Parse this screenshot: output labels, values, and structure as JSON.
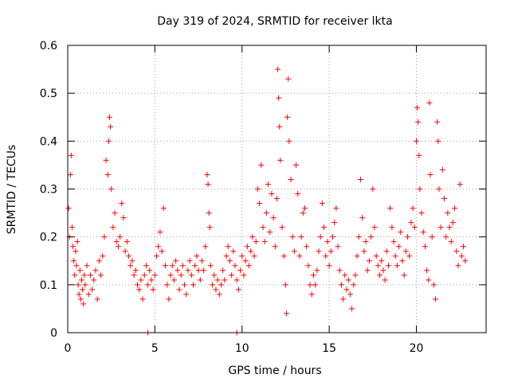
{
  "chart_data": {
    "type": "scatter",
    "title": "Day 319 of 2024, SRMTID for receiver lkta",
    "xlabel": "GPS time / hours",
    "ylabel": "SRMTID / TECUs",
    "xlim": [
      0,
      24
    ],
    "ylim": [
      0,
      0.6
    ],
    "xticks": [
      0,
      5,
      10,
      15,
      20
    ],
    "yticks": [
      0,
      0.1,
      0.2,
      0.3,
      0.4,
      0.5,
      0.6
    ],
    "xtick_labels": [
      "0",
      "5",
      "10",
      "15",
      "20"
    ],
    "ytick_labels": [
      "0",
      "0.1",
      "0.2",
      "0.3",
      "0.4",
      "0.5",
      "0.6"
    ],
    "grid": true,
    "marker": "+",
    "color": "#ff0000",
    "series": [
      {
        "name": "SRMTID",
        "points": [
          [
            0.05,
            0.26
          ],
          [
            0.1,
            0.2
          ],
          [
            0.15,
            0.33
          ],
          [
            0.2,
            0.37
          ],
          [
            0.25,
            0.22
          ],
          [
            0.3,
            0.18
          ],
          [
            0.35,
            0.15
          ],
          [
            0.4,
            0.12
          ],
          [
            0.45,
            0.17
          ],
          [
            0.5,
            0.14
          ],
          [
            0.55,
            0.19
          ],
          [
            0.6,
            0.1
          ],
          [
            0.65,
            0.08
          ],
          [
            0.7,
            0.13
          ],
          [
            0.75,
            0.07
          ],
          [
            0.8,
            0.11
          ],
          [
            0.85,
            0.09
          ],
          [
            0.9,
            0.06
          ],
          [
            0.95,
            0.12
          ],
          [
            1.0,
            0.1
          ],
          [
            1.1,
            0.14
          ],
          [
            1.2,
            0.08
          ],
          [
            1.3,
            0.12
          ],
          [
            1.4,
            0.09
          ],
          [
            1.5,
            0.11
          ],
          [
            1.6,
            0.13
          ],
          [
            1.7,
            0.07
          ],
          [
            1.8,
            0.15
          ],
          [
            1.9,
            0.12
          ],
          [
            2.0,
            0.16
          ],
          [
            2.1,
            0.2
          ],
          [
            2.2,
            0.36
          ],
          [
            2.3,
            0.33
          ],
          [
            2.35,
            0.4
          ],
          [
            2.4,
            0.45
          ],
          [
            2.45,
            0.43
          ],
          [
            2.5,
            0.3
          ],
          [
            2.6,
            0.22
          ],
          [
            2.7,
            0.25
          ],
          [
            2.8,
            0.19
          ],
          [
            2.9,
            0.18
          ],
          [
            3.0,
            0.2
          ],
          [
            3.1,
            0.27
          ],
          [
            3.2,
            0.24
          ],
          [
            3.3,
            0.17
          ],
          [
            3.4,
            0.19
          ],
          [
            3.5,
            0.16
          ],
          [
            3.6,
            0.14
          ],
          [
            3.7,
            0.15
          ],
          [
            3.8,
            0.12
          ],
          [
            3.9,
            0.13
          ],
          [
            4.0,
            0.1
          ],
          [
            4.1,
            0.09
          ],
          [
            4.2,
            0.11
          ],
          [
            4.3,
            0.07
          ],
          [
            4.4,
            0.12
          ],
          [
            4.5,
            0.14
          ],
          [
            4.6,
            0.1
          ],
          [
            4.7,
            0.13
          ],
          [
            4.8,
            0.11
          ],
          [
            4.9,
            0.09
          ],
          [
            5.0,
            0.12
          ],
          [
            5.1,
            0.16
          ],
          [
            5.2,
            0.18
          ],
          [
            5.3,
            0.21
          ],
          [
            5.4,
            0.17
          ],
          [
            5.5,
            0.26
          ],
          [
            5.6,
            0.14
          ],
          [
            5.7,
            0.1
          ],
          [
            5.8,
            0.07
          ],
          [
            5.9,
            0.12
          ],
          [
            6.0,
            0.14
          ],
          [
            6.1,
            0.11
          ],
          [
            6.2,
            0.15
          ],
          [
            6.3,
            0.13
          ],
          [
            6.4,
            0.09
          ],
          [
            6.5,
            0.12
          ],
          [
            6.6,
            0.14
          ],
          [
            6.7,
            0.1
          ],
          [
            6.8,
            0.08
          ],
          [
            6.9,
            0.13
          ],
          [
            7.0,
            0.15
          ],
          [
            7.1,
            0.12
          ],
          [
            7.2,
            0.1
          ],
          [
            7.3,
            0.14
          ],
          [
            7.4,
            0.16
          ],
          [
            7.5,
            0.13
          ],
          [
            7.6,
            0.11
          ],
          [
            7.7,
            0.15
          ],
          [
            7.8,
            0.13
          ],
          [
            7.9,
            0.18
          ],
          [
            8.0,
            0.33
          ],
          [
            8.05,
            0.31
          ],
          [
            8.1,
            0.25
          ],
          [
            8.15,
            0.22
          ],
          [
            8.2,
            0.14
          ],
          [
            8.3,
            0.1
          ],
          [
            8.4,
            0.12
          ],
          [
            8.5,
            0.09
          ],
          [
            8.6,
            0.11
          ],
          [
            8.7,
            0.08
          ],
          [
            8.8,
            0.1
          ],
          [
            8.9,
            0.13
          ],
          [
            9.0,
            0.11
          ],
          [
            9.1,
            0.16
          ],
          [
            9.2,
            0.18
          ],
          [
            9.3,
            0.15
          ],
          [
            9.4,
            0.12
          ],
          [
            9.5,
            0.17
          ],
          [
            9.6,
            0.14
          ],
          [
            9.7,
            0.11
          ],
          [
            9.8,
            0.09
          ],
          [
            9.9,
            0.13
          ],
          [
            10.0,
            0.16
          ],
          [
            10.1,
            0.12
          ],
          [
            10.2,
            0.15
          ],
          [
            10.3,
            0.18
          ],
          [
            10.4,
            0.14
          ],
          [
            10.5,
            0.17
          ],
          [
            10.6,
            0.2
          ],
          [
            10.7,
            0.16
          ],
          [
            10.8,
            0.19
          ],
          [
            10.9,
            0.3
          ],
          [
            11.0,
            0.27
          ],
          [
            11.1,
            0.35
          ],
          [
            11.2,
            0.22
          ],
          [
            11.3,
            0.19
          ],
          [
            11.4,
            0.25
          ],
          [
            11.5,
            0.31
          ],
          [
            11.6,
            0.21
          ],
          [
            11.7,
            0.29
          ],
          [
            11.8,
            0.24
          ],
          [
            11.9,
            0.18
          ],
          [
            12.0,
            0.28
          ],
          [
            12.05,
            0.55
          ],
          [
            12.1,
            0.49
          ],
          [
            12.15,
            0.43
          ],
          [
            12.2,
            0.36
          ],
          [
            12.3,
            0.22
          ],
          [
            12.4,
            0.16
          ],
          [
            12.5,
            0.1
          ],
          [
            12.55,
            0.04
          ],
          [
            12.6,
            0.45
          ],
          [
            12.65,
            0.53
          ],
          [
            12.7,
            0.4
          ],
          [
            12.8,
            0.32
          ],
          [
            12.9,
            0.2
          ],
          [
            13.0,
            0.17
          ],
          [
            13.1,
            0.35
          ],
          [
            13.2,
            0.29
          ],
          [
            13.3,
            0.16
          ],
          [
            13.4,
            0.2
          ],
          [
            13.5,
            0.25
          ],
          [
            13.6,
            0.26
          ],
          [
            13.7,
            0.18
          ],
          [
            13.8,
            0.14
          ],
          [
            13.9,
            0.1
          ],
          [
            14.0,
            0.08
          ],
          [
            14.1,
            0.12
          ],
          [
            14.2,
            0.1
          ],
          [
            14.3,
            0.13
          ],
          [
            14.4,
            0.17
          ],
          [
            14.5,
            0.2
          ],
          [
            14.6,
            0.27
          ],
          [
            14.7,
            0.22
          ],
          [
            14.8,
            0.16
          ],
          [
            14.9,
            0.19
          ],
          [
            15.0,
            0.14
          ],
          [
            15.1,
            0.17
          ],
          [
            15.2,
            0.2
          ],
          [
            15.3,
            0.23
          ],
          [
            15.4,
            0.26
          ],
          [
            15.5,
            0.18
          ],
          [
            15.6,
            0.13
          ],
          [
            15.7,
            0.1
          ],
          [
            15.8,
            0.07
          ],
          [
            15.9,
            0.12
          ],
          [
            16.0,
            0.09
          ],
          [
            16.1,
            0.11
          ],
          [
            16.2,
            0.08
          ],
          [
            16.3,
            0.05
          ],
          [
            16.4,
            0.1
          ],
          [
            16.5,
            0.12
          ],
          [
            16.6,
            0.16
          ],
          [
            16.7,
            0.2
          ],
          [
            16.8,
            0.32
          ],
          [
            16.9,
            0.24
          ],
          [
            17.0,
            0.17
          ],
          [
            17.1,
            0.19
          ],
          [
            17.2,
            0.13
          ],
          [
            17.3,
            0.15
          ],
          [
            17.4,
            0.2
          ],
          [
            17.5,
            0.3
          ],
          [
            17.6,
            0.22
          ],
          [
            17.7,
            0.16
          ],
          [
            17.8,
            0.14
          ],
          [
            17.9,
            0.12
          ],
          [
            18.0,
            0.15
          ],
          [
            18.1,
            0.13
          ],
          [
            18.2,
            0.11
          ],
          [
            18.3,
            0.17
          ],
          [
            18.4,
            0.14
          ],
          [
            18.5,
            0.26
          ],
          [
            18.6,
            0.22
          ],
          [
            18.7,
            0.19
          ],
          [
            18.8,
            0.16
          ],
          [
            18.9,
            0.14
          ],
          [
            19.0,
            0.18
          ],
          [
            19.1,
            0.21
          ],
          [
            19.2,
            0.15
          ],
          [
            19.3,
            0.12
          ],
          [
            19.4,
            0.17
          ],
          [
            19.5,
            0.2
          ],
          [
            19.6,
            0.16
          ],
          [
            19.7,
            0.23
          ],
          [
            19.8,
            0.26
          ],
          [
            19.9,
            0.22
          ],
          [
            20.0,
            0.4
          ],
          [
            20.05,
            0.47
          ],
          [
            20.1,
            0.44
          ],
          [
            20.15,
            0.37
          ],
          [
            20.2,
            0.3
          ],
          [
            20.3,
            0.25
          ],
          [
            20.4,
            0.21
          ],
          [
            20.5,
            0.18
          ],
          [
            20.6,
            0.13
          ],
          [
            20.7,
            0.11
          ],
          [
            20.75,
            0.48
          ],
          [
            20.8,
            0.33
          ],
          [
            20.9,
            0.2
          ],
          [
            21.0,
            0.1
          ],
          [
            21.1,
            0.07
          ],
          [
            21.2,
            0.44
          ],
          [
            21.25,
            0.4
          ],
          [
            21.3,
            0.3
          ],
          [
            21.4,
            0.22
          ],
          [
            21.5,
            0.34
          ],
          [
            21.6,
            0.28
          ],
          [
            21.7,
            0.2
          ],
          [
            21.8,
            0.25
          ],
          [
            21.9,
            0.22
          ],
          [
            22.0,
            0.19
          ],
          [
            22.1,
            0.23
          ],
          [
            22.2,
            0.26
          ],
          [
            22.3,
            0.17
          ],
          [
            22.4,
            0.14
          ],
          [
            22.5,
            0.31
          ],
          [
            22.6,
            0.16
          ],
          [
            22.7,
            0.18
          ],
          [
            22.8,
            0.15
          ],
          [
            4.6,
            0.0
          ],
          [
            9.7,
            0.0
          ]
        ]
      }
    ]
  }
}
